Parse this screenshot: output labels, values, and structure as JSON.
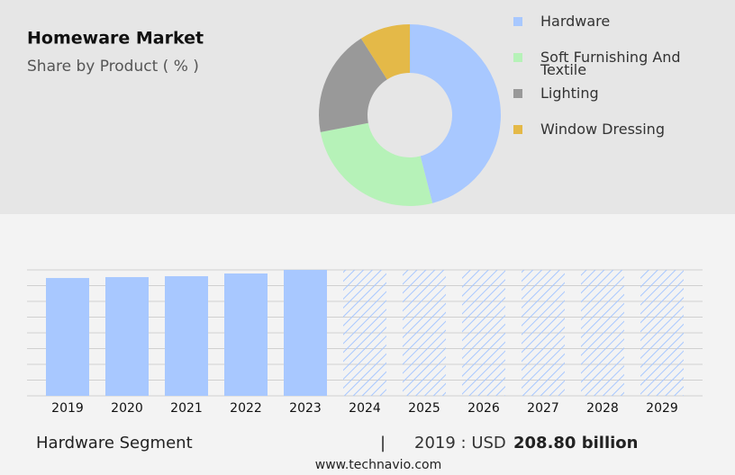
{
  "header": {
    "title": "Homeware Market",
    "subtitle": "Share by Product ( % )"
  },
  "chart_data": [
    {
      "type": "donut",
      "categories": [
        "Hardware",
        "Soft Furnishing And Textile",
        "Lighting",
        "Window Dressing"
      ],
      "values": [
        46,
        26,
        19,
        9
      ],
      "colors": [
        "#a8c8ff",
        "#b6f2b8",
        "#999999",
        "#e4b948"
      ]
    },
    {
      "type": "bar",
      "categories": [
        "2019",
        "2020",
        "2021",
        "2022",
        "2023",
        "2024",
        "2025",
        "2026",
        "2027",
        "2028",
        "2029"
      ],
      "values": [
        208.8,
        210.4,
        212.0,
        216.8,
        223.2,
        null,
        null,
        null,
        null,
        null,
        null
      ],
      "color": "#a8c8ff",
      "ylim": [
        0,
        223.2
      ],
      "grid": true
    }
  ],
  "footer": {
    "segment": "Hardware Segment",
    "separator": "|",
    "year_label": "2019 : USD",
    "value_text": "208.80 billion",
    "source": "www.technavio.com"
  }
}
